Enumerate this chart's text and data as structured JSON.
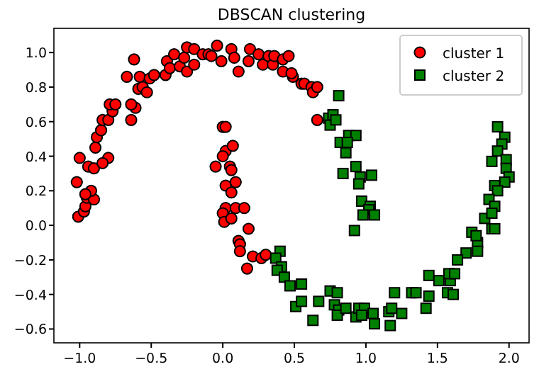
{
  "chart_data": {
    "type": "scatter",
    "title": "DBSCAN clustering",
    "xlim": [
      -1.18,
      2.14
    ],
    "ylim": [
      -0.68,
      1.14
    ],
    "xticks": [
      {
        "value": -1,
        "label": "−1.0"
      },
      {
        "value": -0.5,
        "label": "−0.5"
      },
      {
        "value": 0,
        "label": "0.0"
      },
      {
        "value": 0.5,
        "label": "0.5"
      },
      {
        "value": 1,
        "label": "1.0"
      },
      {
        "value": 1.5,
        "label": "1.5"
      },
      {
        "value": 2,
        "label": "2.0"
      }
    ],
    "yticks": [
      {
        "value": -0.6,
        "label": "−0.6"
      },
      {
        "value": -0.4,
        "label": "−0.4"
      },
      {
        "value": -0.2,
        "label": "−0.2"
      },
      {
        "value": 0,
        "label": "0.0"
      },
      {
        "value": 0.2,
        "label": "0.2"
      },
      {
        "value": 0.4,
        "label": "0.4"
      },
      {
        "value": 0.6,
        "label": "0.6"
      },
      {
        "value": 0.8,
        "label": "0.8"
      },
      {
        "value": 1,
        "label": "1.0"
      }
    ],
    "grid": false,
    "legend": "top right",
    "series": [
      {
        "name": "cluster 1",
        "color": "#ff0000",
        "marker": "circle",
        "x": [
          -1.02,
          -1.0,
          -0.94,
          -0.9,
          -0.89,
          -0.88,
          -0.85,
          -0.84,
          -0.8,
          -0.77,
          -0.79,
          -0.75,
          -0.8,
          -0.84,
          -0.64,
          -0.61,
          -0.64,
          -0.59,
          -0.56,
          -0.53,
          -0.67,
          -0.58,
          -0.51,
          -0.48,
          -0.62,
          -0.4,
          -0.39,
          -0.37,
          -0.34,
          -0.3,
          -0.27,
          -0.25,
          -0.25,
          -0.2,
          -0.2,
          -0.14,
          -0.1,
          -0.08,
          -0.04,
          -0.01,
          0.06,
          0.08,
          0.11,
          0.18,
          0.19,
          0.25,
          0.28,
          0.32,
          0.35,
          0.36,
          0.42,
          0.46,
          0.42,
          0.49,
          0.48,
          0.55,
          0.57,
          0.62,
          0.63,
          0.66,
          0.66,
          0.0,
          0.02,
          0.02,
          0.0,
          0.07,
          -0.05,
          0.05,
          0.06,
          0.09,
          0.02,
          0.06,
          0.02,
          0.09,
          0.15,
          -1.01,
          -0.97,
          -0.96,
          -0.95,
          -0.9,
          -0.92,
          -0.96,
          0.0,
          0.01,
          0.06,
          0.18,
          0.11,
          0.12,
          0.12,
          0.21,
          0.27,
          0.3,
          0.17
        ],
        "values": [
          0.25,
          0.39,
          0.34,
          0.33,
          0.45,
          0.51,
          0.55,
          0.61,
          0.61,
          0.66,
          0.7,
          0.7,
          0.39,
          0.36,
          0.61,
          0.68,
          0.7,
          0.79,
          0.8,
          0.77,
          0.86,
          0.86,
          0.85,
          0.87,
          0.96,
          0.87,
          0.95,
          0.91,
          0.99,
          0.92,
          0.97,
          0.89,
          1.03,
          0.93,
          1.02,
          0.99,
          0.99,
          0.98,
          1.04,
          0.95,
          1.02,
          0.97,
          0.89,
          0.95,
          1.02,
          0.99,
          0.93,
          0.98,
          0.93,
          0.98,
          0.96,
          0.98,
          0.89,
          0.86,
          0.88,
          0.82,
          0.82,
          0.8,
          0.77,
          0.8,
          0.61,
          0.57,
          0.57,
          0.43,
          0.4,
          0.46,
          0.34,
          0.34,
          0.32,
          0.25,
          0.23,
          0.19,
          0.1,
          0.1,
          0.1,
          0.05,
          0.08,
          0.11,
          0.16,
          0.15,
          0.2,
          0.18,
          0.07,
          0.02,
          0.04,
          -0.02,
          -0.09,
          -0.11,
          -0.15,
          -0.18,
          -0.19,
          -0.17,
          -0.25
        ]
      },
      {
        "name": "cluster 2",
        "color": "#008000",
        "marker": "square",
        "x": [
          0.81,
          0.74,
          0.77,
          0.75,
          0.79,
          0.88,
          0.93,
          0.82,
          0.87,
          0.86,
          0.93,
          0.84,
          0.96,
          1.04,
          0.95,
          0.97,
          1.03,
          1.02,
          0.98,
          1.06,
          0.92,
          1.92,
          1.97,
          1.95,
          1.92,
          1.88,
          1.98,
          1.98,
          2.0,
          1.97,
          1.9,
          1.92,
          1.86,
          1.9,
          1.83,
          1.88,
          1.88,
          1.9,
          1.78,
          1.74,
          1.77,
          1.78,
          1.7,
          1.64,
          0.4,
          0.37,
          0.41,
          0.38,
          0.43,
          0.47,
          0.55,
          0.51,
          0.55,
          0.67,
          0.63,
          0.75,
          0.8,
          0.78,
          0.81,
          0.8,
          0.86,
          0.93,
          0.95,
          0.99,
          0.97,
          1.05,
          1.06,
          1.17,
          1.16,
          1.18,
          1.2,
          1.25,
          1.32,
          1.35,
          1.42,
          1.44,
          1.44,
          1.51,
          1.57,
          1.61,
          1.59,
          1.58,
          1.62
        ],
        "values": [
          0.75,
          0.62,
          0.64,
          0.58,
          0.61,
          0.52,
          0.52,
          0.48,
          0.48,
          0.42,
          0.34,
          0.3,
          0.28,
          0.29,
          0.24,
          0.14,
          0.11,
          0.09,
          0.06,
          0.06,
          -0.03,
          0.57,
          0.51,
          0.47,
          0.43,
          0.37,
          0.38,
          0.33,
          0.28,
          0.25,
          0.23,
          0.2,
          0.15,
          0.11,
          0.04,
          0.07,
          -0.02,
          -0.02,
          -0.1,
          -0.04,
          -0.06,
          -0.15,
          -0.16,
          -0.2,
          -0.15,
          -0.19,
          -0.24,
          -0.26,
          -0.3,
          -0.35,
          -0.34,
          -0.47,
          -0.44,
          -0.44,
          -0.55,
          -0.38,
          -0.39,
          -0.46,
          -0.49,
          -0.52,
          -0.48,
          -0.53,
          -0.48,
          -0.48,
          -0.52,
          -0.51,
          -0.57,
          -0.58,
          -0.5,
          -0.48,
          -0.39,
          -0.51,
          -0.39,
          -0.39,
          -0.48,
          -0.41,
          -0.29,
          -0.32,
          -0.39,
          -0.4,
          -0.32,
          -0.28,
          -0.28
        ]
      }
    ]
  }
}
